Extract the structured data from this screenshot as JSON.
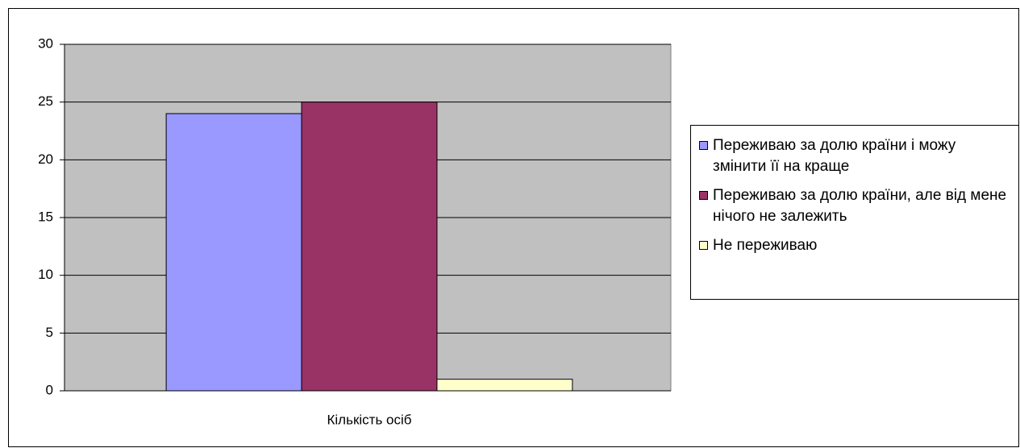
{
  "chart_data": {
    "type": "bar",
    "categories": [
      "Кількість осіб"
    ],
    "series": [
      {
        "name": "Переживаю за долю країни і можу змінити її на краще",
        "color": "#9999ff",
        "values": [
          24
        ]
      },
      {
        "name": "Переживаю за долю країни, але від мене нічого не залежить",
        "color": "#993366",
        "values": [
          25
        ]
      },
      {
        "name": "Не переживаю",
        "color": "#ffffcc",
        "values": [
          1
        ]
      }
    ],
    "ylim": [
      0,
      30
    ],
    "yticks": [
      0,
      5,
      10,
      15,
      20,
      25,
      30
    ],
    "grid": true,
    "legend": "right"
  }
}
